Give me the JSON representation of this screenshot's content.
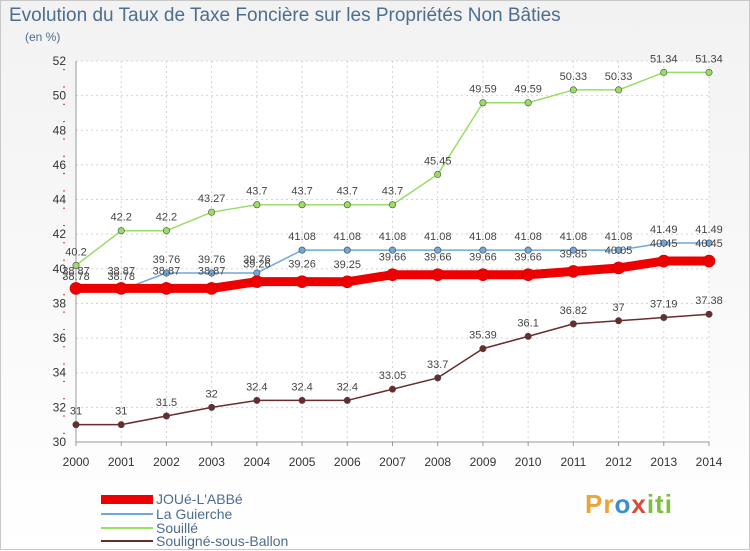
{
  "chart_data": {
    "type": "line",
    "title": "Evolution du Taux de Taxe Foncière sur les Propriétés Non Bâties",
    "ylabel": "(en %)",
    "xlabel": "",
    "ylim": [
      30,
      52
    ],
    "yticks": [
      30,
      32,
      34,
      36,
      38,
      40,
      42,
      44,
      46,
      48,
      50,
      52
    ],
    "categories": [
      "2000",
      "2001",
      "2002",
      "2003",
      "2004",
      "2005",
      "2006",
      "2007",
      "2008",
      "2009",
      "2010",
      "2011",
      "2012",
      "2013",
      "2014"
    ],
    "grid": true,
    "series": [
      {
        "name": "JOUé-L'ABBé",
        "color": "#ee0000",
        "values": [
          38.87,
          38.87,
          38.87,
          38.87,
          39.26,
          39.26,
          39.25,
          39.66,
          39.66,
          39.66,
          39.66,
          39.85,
          40.05,
          40.45,
          40.45
        ],
        "labels": [
          "38.87",
          "38.87",
          "38.87",
          "38.87",
          "39.26",
          "39.26",
          "39.25",
          "39.66",
          "39.66",
          "39.66",
          "39.66",
          "39.85",
          "40.05",
          "40.45",
          "40.45"
        ]
      },
      {
        "name": "La Guierche",
        "color": "#6fa8dc",
        "values": [
          38.78,
          38.78,
          39.76,
          39.76,
          39.76,
          41.08,
          41.08,
          41.08,
          41.08,
          41.08,
          41.08,
          41.08,
          41.08,
          41.49,
          41.49
        ],
        "labels": [
          "38.78",
          "38.78",
          "39.76",
          "39.76",
          "39.76",
          "41.08",
          "41.08",
          "41.08",
          "41.08",
          "41.08",
          "41.08",
          "41.08",
          "41.08",
          "41.49",
          "41.49"
        ]
      },
      {
        "name": "Souillé",
        "color": "#99dd66",
        "values": [
          40.2,
          42.2,
          42.2,
          43.27,
          43.7,
          43.7,
          43.7,
          43.7,
          45.45,
          49.59,
          49.59,
          50.33,
          50.33,
          51.34,
          51.34
        ],
        "labels": [
          "40.2",
          "42.2",
          "42.2",
          "43.27",
          "43.7",
          "43.7",
          "43.7",
          "43.7",
          "45.45",
          "49.59",
          "49.59",
          "50.33",
          "50.33",
          "51.34",
          "51.34"
        ]
      },
      {
        "name": "Souligné-sous-Ballon",
        "color": "#6b2b2b",
        "values": [
          31,
          31,
          31.5,
          32,
          32.4,
          32.4,
          32.4,
          33.05,
          33.7,
          35.39,
          36.1,
          36.82,
          37,
          37.19,
          37.38
        ],
        "labels": [
          "31",
          "31",
          "31.5",
          "32",
          "32.4",
          "32.4",
          "32.4",
          "33.05",
          "33.7",
          "35.39",
          "36.1",
          "36.82",
          "37",
          "37.19",
          "37.38"
        ]
      }
    ],
    "legend": "bottom-left"
  },
  "brand": {
    "parts": [
      "Pr",
      "o",
      "x",
      "iti"
    ]
  }
}
